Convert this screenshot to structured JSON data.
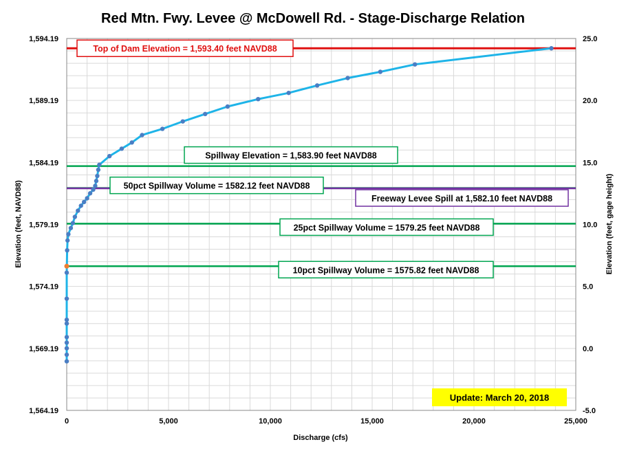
{
  "chart_data": {
    "type": "scatter",
    "title": "Red Mtn. Fwy. Levee @ McDowell Rd. - Stage-Discharge Relation",
    "xlabel": "Discharge  (cfs)",
    "ylabel_left": "Elevation  (feet, NAVD88)",
    "ylabel_right": "Elevation  (feet, gage height)",
    "xlim": [
      0,
      25000
    ],
    "ylim_left": [
      1564.19,
      1594.19
    ],
    "ylim_right": [
      -5.0,
      25.0
    ],
    "x_ticks": [
      "0",
      "5,000",
      "10,000",
      "15,000",
      "20,000",
      "25,000"
    ],
    "y_left_ticks": [
      "1,564.19",
      "1,569.19",
      "1,574.19",
      "1,579.19",
      "1,584.19",
      "1,589.19",
      "1,594.19"
    ],
    "y_right_ticks": [
      "-5.0",
      "0.0",
      "5.0",
      "10.0",
      "15.0",
      "20.0",
      "25.0"
    ],
    "grid": true,
    "series": [
      {
        "color": "#1eb4e8",
        "marker_color": "#4a7ec4",
        "points": [
          [
            0,
            1568.15
          ],
          [
            0,
            1568.68
          ],
          [
            0,
            1569.2
          ],
          [
            0,
            1569.65
          ],
          [
            0,
            1570.1
          ],
          [
            0,
            1571.2
          ],
          [
            0,
            1571.5
          ],
          [
            0,
            1573.2
          ],
          [
            0,
            1575.3
          ],
          [
            20,
            1577.1
          ],
          [
            40,
            1577.9
          ],
          [
            80,
            1578.4
          ],
          [
            200,
            1578.9
          ],
          [
            300,
            1579.3
          ],
          [
            400,
            1579.8
          ],
          [
            550,
            1580.3
          ],
          [
            700,
            1580.7
          ],
          [
            850,
            1581.0
          ],
          [
            1000,
            1581.3
          ],
          [
            1150,
            1581.7
          ],
          [
            1300,
            1582.0
          ],
          [
            1400,
            1582.3
          ],
          [
            1450,
            1582.7
          ],
          [
            1500,
            1583.1
          ],
          [
            1550,
            1583.6
          ],
          [
            1600,
            1584.0
          ],
          [
            2100,
            1584.7
          ],
          [
            2700,
            1585.3
          ],
          [
            3200,
            1585.8
          ],
          [
            3700,
            1586.4
          ],
          [
            4700,
            1586.9
          ],
          [
            5700,
            1587.5
          ],
          [
            6800,
            1588.1
          ],
          [
            7900,
            1588.7
          ],
          [
            9400,
            1589.3
          ],
          [
            10900,
            1589.8
          ],
          [
            12300,
            1590.4
          ],
          [
            13800,
            1591.0
          ],
          [
            15400,
            1591.5
          ],
          [
            17100,
            1592.1
          ],
          [
            23800,
            1593.4
          ]
        ],
        "highlight_point": [
          0,
          1575.82
        ],
        "highlight_color": "#ed7d31"
      }
    ],
    "reference_lines": [
      {
        "label": "Top of Dam Elevation = 1,593.40 feet NAVD88",
        "y": 1593.4,
        "color": "#e01010",
        "text_color": "#e01010"
      },
      {
        "label": "Spillway Elevation = 1,583.90  feet NAVD88",
        "y": 1583.9,
        "color": "#00a550",
        "text_color": "#000000"
      },
      {
        "label": "50pct Spillway Volume = 1582.12  feet NAVD88",
        "y": 1582.12,
        "color": "#00a550",
        "text_color": "#000000"
      },
      {
        "label": "Freeway Levee Spill at 1,582.10  feet NAVD88",
        "y": 1582.1,
        "color": "#7030a0",
        "text_color": "#000000"
      },
      {
        "label": "25pct Spillway Volume = 1579.25  feet NAVD88",
        "y": 1579.25,
        "color": "#00a550",
        "text_color": "#000000"
      },
      {
        "label": "10pct Spillway Volume = 1575.82  feet NAVD88",
        "y": 1575.82,
        "color": "#00a550",
        "text_color": "#000000"
      }
    ],
    "update_note": "Update: March 20, 2018",
    "update_note_color": "#ffff00"
  }
}
